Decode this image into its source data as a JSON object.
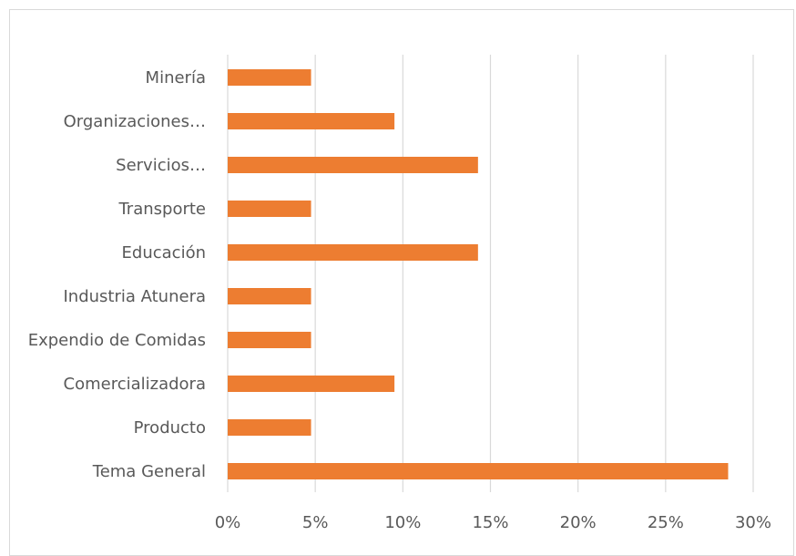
{
  "chart_data": {
    "type": "bar",
    "orientation": "horizontal",
    "categories": [
      "Minería",
      "Organizaciones…",
      "Servicios…",
      "Transporte",
      "Educación",
      "Industria Atunera",
      "Expendio de Comidas",
      "Comercializadora",
      "Producto",
      "Tema General"
    ],
    "values": [
      4.76,
      9.52,
      14.29,
      4.76,
      14.29,
      4.76,
      4.76,
      9.52,
      4.76,
      28.57
    ],
    "xlim": [
      0,
      30
    ],
    "x_ticks": [
      "0%",
      "5%",
      "10%",
      "15%",
      "20%",
      "25%",
      "30%"
    ],
    "x_tick_values": [
      0,
      5,
      10,
      15,
      20,
      25,
      30
    ],
    "title": "",
    "xlabel": "",
    "ylabel": "",
    "grid": true,
    "bar_color": "#ed7d31",
    "grid_color": "#d9d9d9"
  }
}
